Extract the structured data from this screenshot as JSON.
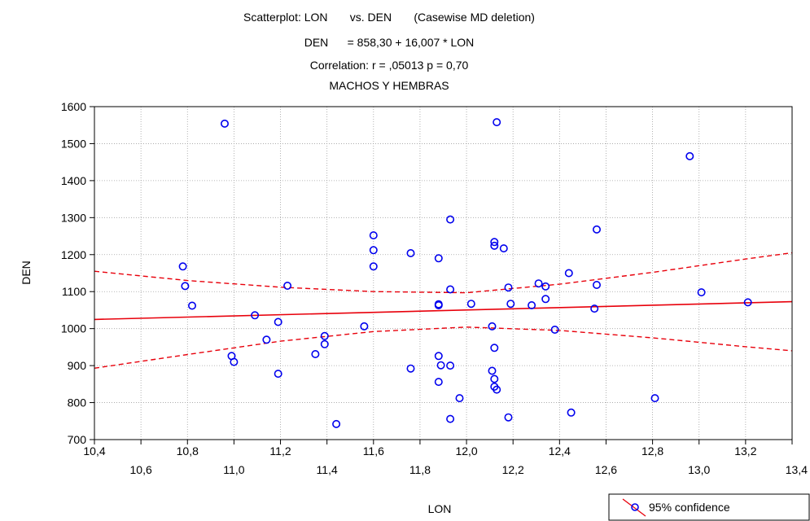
{
  "chart_data": {
    "type": "scatter",
    "title_lines": [
      "Scatterplot: LON       vs. DEN       (Casewise MD deletion)",
      "DEN      = 858,30 + 16,007 * LON",
      "Correlation: r = ,05013 p = 0,70",
      "MACHOS Y HEMBRAS"
    ],
    "xlabel": "LON",
    "ylabel": "DEN",
    "xlim": [
      10.4,
      13.4
    ],
    "ylim": [
      700,
      1600
    ],
    "y_ticks": [
      700,
      800,
      900,
      1000,
      1100,
      1200,
      1300,
      1400,
      1500,
      1600
    ],
    "y_tick_labels": [
      "700",
      "800",
      "900",
      "1000",
      "1100",
      "1200",
      "1300",
      "1400",
      "1500",
      "1600"
    ],
    "x_ticks_upper": [
      10.4,
      10.8,
      11.2,
      11.6,
      12.0,
      12.4,
      12.8,
      13.2
    ],
    "x_tick_labels_upper": [
      "10,4",
      "10,8",
      "11,2",
      "11,6",
      "12,0",
      "12,4",
      "12,8",
      "13,2"
    ],
    "x_ticks_lower": [
      10.6,
      11.0,
      11.4,
      11.8,
      12.2,
      12.6,
      13.0,
      13.4
    ],
    "x_tick_labels_lower": [
      "10,6",
      "11,0",
      "11,4",
      "11,8",
      "12,2",
      "12,6",
      "13,0",
      "13,4"
    ],
    "grid": true,
    "regression": {
      "intercept": 858.3,
      "slope": 16.007
    },
    "confidence_band": {
      "x": [
        10.4,
        10.8,
        11.2,
        11.6,
        12.0,
        12.4,
        12.8,
        13.2,
        13.4
      ],
      "upper": [
        1155,
        1130,
        1112,
        1100,
        1097,
        1120,
        1152,
        1188,
        1205
      ],
      "lower": [
        893,
        930,
        966,
        992,
        1004,
        995,
        975,
        951,
        940
      ]
    },
    "points": [
      {
        "x": 10.78,
        "y": 1168
      },
      {
        "x": 10.79,
        "y": 1115
      },
      {
        "x": 10.82,
        "y": 1062
      },
      {
        "x": 10.96,
        "y": 1554
      },
      {
        "x": 10.99,
        "y": 926
      },
      {
        "x": 11.0,
        "y": 910
      },
      {
        "x": 11.09,
        "y": 1036
      },
      {
        "x": 11.14,
        "y": 970
      },
      {
        "x": 11.19,
        "y": 1018
      },
      {
        "x": 11.19,
        "y": 878
      },
      {
        "x": 11.23,
        "y": 1116
      },
      {
        "x": 11.35,
        "y": 931
      },
      {
        "x": 11.39,
        "y": 980
      },
      {
        "x": 11.39,
        "y": 958
      },
      {
        "x": 11.44,
        "y": 742
      },
      {
        "x": 11.56,
        "y": 1006
      },
      {
        "x": 11.6,
        "y": 1252
      },
      {
        "x": 11.6,
        "y": 1212
      },
      {
        "x": 11.6,
        "y": 1168
      },
      {
        "x": 11.76,
        "y": 1204
      },
      {
        "x": 11.76,
        "y": 892
      },
      {
        "x": 11.88,
        "y": 1190
      },
      {
        "x": 11.88,
        "y": 1066
      },
      {
        "x": 11.88,
        "y": 1063
      },
      {
        "x": 11.88,
        "y": 926
      },
      {
        "x": 11.88,
        "y": 856
      },
      {
        "x": 11.89,
        "y": 901
      },
      {
        "x": 11.93,
        "y": 1295
      },
      {
        "x": 11.93,
        "y": 1106
      },
      {
        "x": 11.93,
        "y": 900
      },
      {
        "x": 11.93,
        "y": 756
      },
      {
        "x": 11.97,
        "y": 812
      },
      {
        "x": 12.02,
        "y": 1067
      },
      {
        "x": 12.11,
        "y": 1006
      },
      {
        "x": 12.11,
        "y": 886
      },
      {
        "x": 12.12,
        "y": 1234
      },
      {
        "x": 12.12,
        "y": 1224
      },
      {
        "x": 12.12,
        "y": 948
      },
      {
        "x": 12.12,
        "y": 864
      },
      {
        "x": 12.12,
        "y": 843
      },
      {
        "x": 12.13,
        "y": 1558
      },
      {
        "x": 12.13,
        "y": 835
      },
      {
        "x": 12.16,
        "y": 1217
      },
      {
        "x": 12.18,
        "y": 1111
      },
      {
        "x": 12.18,
        "y": 760
      },
      {
        "x": 12.19,
        "y": 1067
      },
      {
        "x": 12.28,
        "y": 1063
      },
      {
        "x": 12.31,
        "y": 1122
      },
      {
        "x": 12.34,
        "y": 1114
      },
      {
        "x": 12.34,
        "y": 1080
      },
      {
        "x": 12.38,
        "y": 997
      },
      {
        "x": 12.44,
        "y": 1150
      },
      {
        "x": 12.45,
        "y": 773
      },
      {
        "x": 12.55,
        "y": 1054
      },
      {
        "x": 12.56,
        "y": 1268
      },
      {
        "x": 12.56,
        "y": 1118
      },
      {
        "x": 12.81,
        "y": 812
      },
      {
        "x": 12.96,
        "y": 1466
      },
      {
        "x": 13.01,
        "y": 1098
      },
      {
        "x": 13.21,
        "y": 1071
      }
    ],
    "legend": {
      "label": "95% confidence",
      "position": "bottom-right"
    },
    "colors": {
      "line": "#e8000b",
      "points": "#0000ee",
      "grid": "#a0a0a0",
      "axes": "#000000"
    }
  }
}
